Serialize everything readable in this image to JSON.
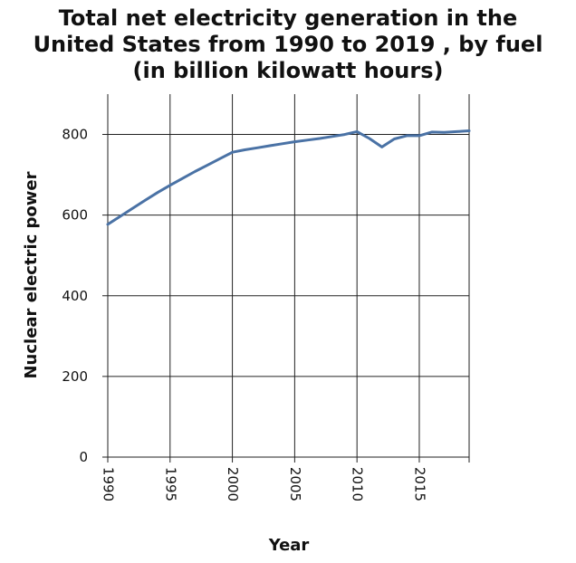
{
  "chart_data": {
    "type": "line",
    "title": [
      "Total net electricity generation in the",
      "United States from 1990 to 2019 , by fuel",
      "(in billion kilowatt hours)"
    ],
    "xlabel": "Year",
    "ylabel": "Nuclear electric power",
    "xlim": [
      1990,
      2019
    ],
    "ylim": [
      0,
      900
    ],
    "x_ticks": [
      1990,
      1995,
      2000,
      2005,
      2010,
      2015
    ],
    "y_ticks": [
      0,
      200,
      400,
      600,
      800
    ],
    "grid": true,
    "series": [
      {
        "name": "Nuclear electric power",
        "color": "#4a72a5",
        "x": [
          1990,
          1991,
          1992,
          1993,
          1994,
          1995,
          1996,
          1997,
          1998,
          1999,
          2000,
          2001,
          2002,
          2003,
          2004,
          2005,
          2006,
          2007,
          2008,
          2009,
          2010,
          2011,
          2012,
          2013,
          2014,
          2015,
          2016,
          2017,
          2018,
          2019
        ],
        "values": [
          577,
          597,
          617,
          637,
          656,
          674,
          691,
          708,
          724,
          740,
          756,
          762,
          767,
          772,
          777,
          782,
          786,
          790,
          795,
          800,
          807,
          790,
          769,
          789,
          797,
          797,
          806,
          805,
          807,
          809
        ]
      }
    ]
  }
}
